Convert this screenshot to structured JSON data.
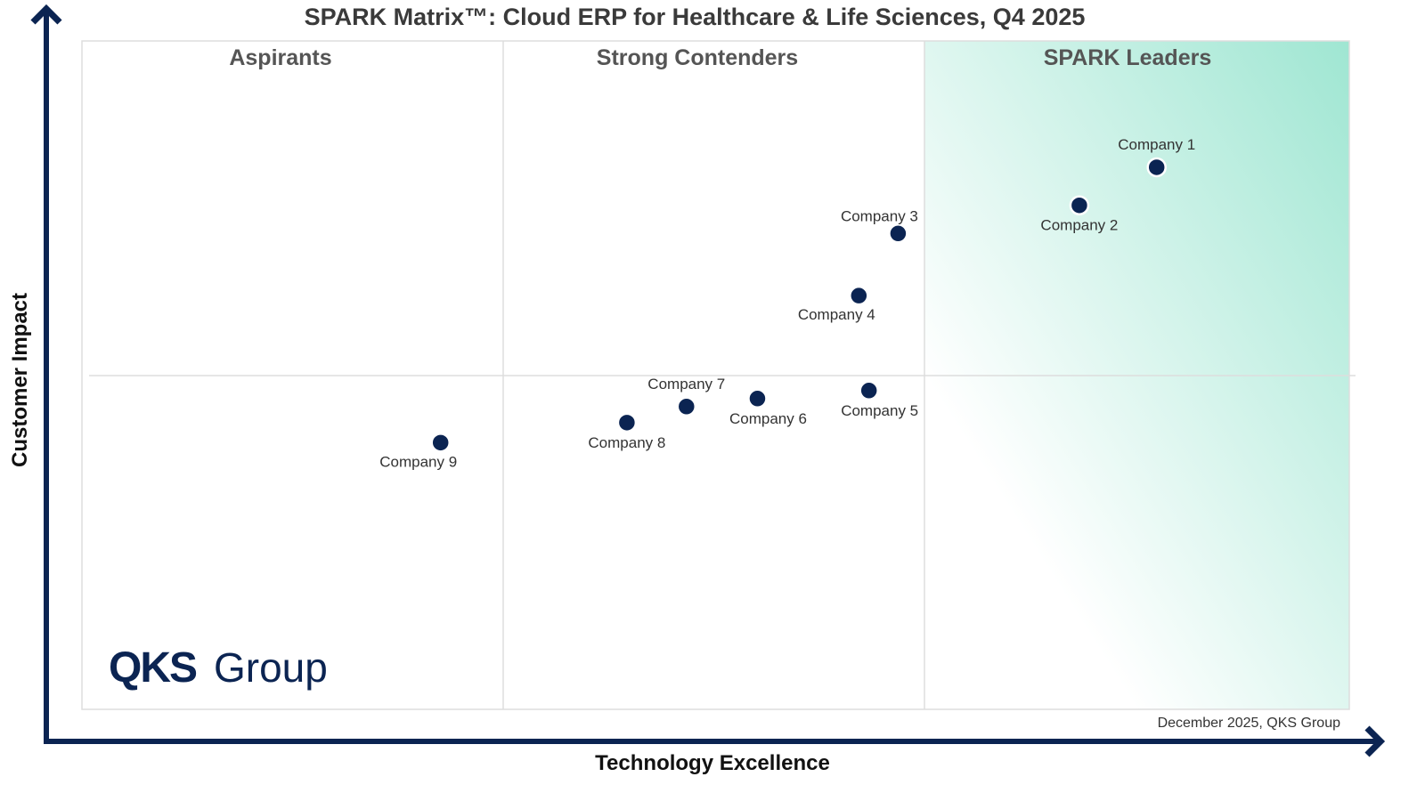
{
  "chart_data": {
    "type": "scatter",
    "title": "SPARK Matrix™: Cloud ERP for Healthcare & Life Sciences, Q4 2025",
    "xlabel": "Technology Excellence",
    "ylabel": "Customer Impact",
    "xlim": [
      0,
      100
    ],
    "ylim": [
      0,
      100
    ],
    "grid": false,
    "quadrants": [
      "Aspirants",
      "Strong Contenders",
      "SPARK Leaders"
    ],
    "points": [
      {
        "name": "Company 1",
        "x": 84.8,
        "y": 81.1,
        "label_position": "above"
      },
      {
        "name": "Company 2",
        "x": 78.7,
        "y": 75.4,
        "label_position": "below"
      },
      {
        "name": "Company 3",
        "x": 64.4,
        "y": 71.2,
        "label_position": "above-left"
      },
      {
        "name": "Company 4",
        "x": 61.3,
        "y": 61.9,
        "label_position": "below-left"
      },
      {
        "name": "Company 5",
        "x": 62.1,
        "y": 47.7,
        "label_position": "below-right"
      },
      {
        "name": "Company 6",
        "x": 53.3,
        "y": 46.5,
        "label_position": "below-right"
      },
      {
        "name": "Company 7",
        "x": 47.7,
        "y": 45.3,
        "label_position": "above"
      },
      {
        "name": "Company 8",
        "x": 43.0,
        "y": 42.9,
        "label_position": "below"
      },
      {
        "name": "Company 9",
        "x": 28.3,
        "y": 39.9,
        "label_position": "below-left"
      }
    ],
    "colors": {
      "point": "#0b2452",
      "axis": "#0b2452",
      "leaders_gradient": "#9fe6d2"
    }
  },
  "logo": {
    "text_bold": "QKS",
    "text_light": "Group"
  },
  "credit": "December 2025, QKS Group"
}
